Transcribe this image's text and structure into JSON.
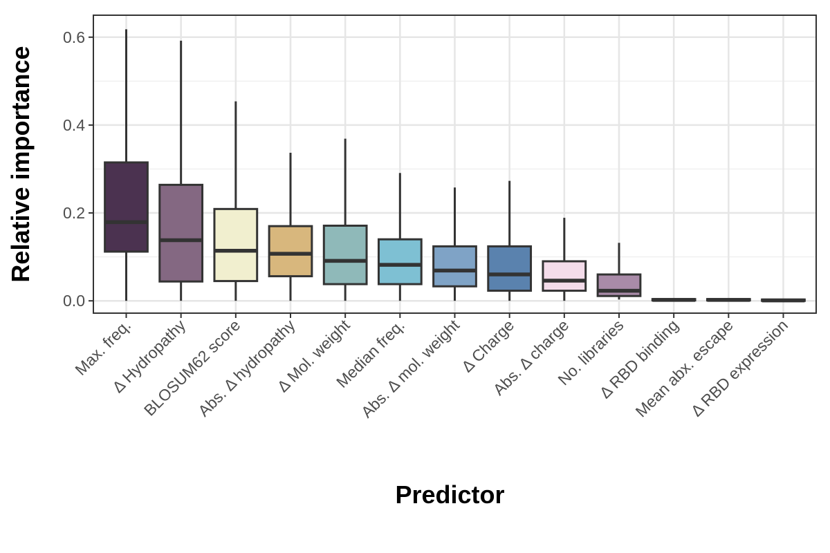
{
  "chart_data": {
    "type": "boxplot",
    "title": "",
    "xlabel": "Predictor",
    "ylabel": "Relative importance",
    "ylim": [
      -0.028,
      0.65
    ],
    "yticks": [
      0.0,
      0.2,
      0.4,
      0.6
    ],
    "ytick_labels": [
      "0.0",
      "0.2",
      "0.4",
      "0.6"
    ],
    "grid": true,
    "legend": "none",
    "categories": [
      "Max. freq.",
      "Δ Hydropathy",
      "BLOSUM62 score",
      "Abs. Δ hydropathy",
      "Δ Mol. weight",
      "Median freq.",
      "Abs. Δ mol. weight",
      "Δ Charge",
      "Abs. Δ charge",
      "No. libraries",
      "Δ RBD binding",
      "Mean abx. escape",
      "Δ RBD expression"
    ],
    "boxes": [
      {
        "min": 0.0,
        "q1": 0.112,
        "median": 0.179,
        "q3": 0.315,
        "max": 0.618,
        "color": "#4b3250"
      },
      {
        "min": 0.0,
        "q1": 0.044,
        "median": 0.138,
        "q3": 0.264,
        "max": 0.592,
        "color": "#846882"
      },
      {
        "min": 0.0,
        "q1": 0.045,
        "median": 0.114,
        "q3": 0.209,
        "max": 0.454,
        "color": "#f1efcf"
      },
      {
        "min": 0.0,
        "q1": 0.056,
        "median": 0.107,
        "q3": 0.17,
        "max": 0.337,
        "color": "#d8b77d"
      },
      {
        "min": 0.0,
        "q1": 0.038,
        "median": 0.091,
        "q3": 0.171,
        "max": 0.369,
        "color": "#8fb9b9"
      },
      {
        "min": 0.0,
        "q1": 0.038,
        "median": 0.082,
        "q3": 0.14,
        "max": 0.291,
        "color": "#7ec0d3"
      },
      {
        "min": 0.0,
        "q1": 0.033,
        "median": 0.069,
        "q3": 0.124,
        "max": 0.258,
        "color": "#7fa3c6"
      },
      {
        "min": 0.0,
        "q1": 0.023,
        "median": 0.06,
        "q3": 0.124,
        "max": 0.273,
        "color": "#5a82ae"
      },
      {
        "min": 0.0,
        "q1": 0.023,
        "median": 0.046,
        "q3": 0.09,
        "max": 0.189,
        "color": "#f4dcea"
      },
      {
        "min": 0.003,
        "q1": 0.011,
        "median": 0.023,
        "q3": 0.06,
        "max": 0.132,
        "color": "#a98ba8"
      },
      {
        "min": 0.0,
        "q1": 0.001,
        "median": 0.002,
        "q3": 0.004,
        "max": 0.006,
        "color": "#6b6b6b"
      },
      {
        "min": 0.0,
        "q1": 0.001,
        "median": 0.002,
        "q3": 0.004,
        "max": 0.005,
        "color": "#6b6b6b"
      },
      {
        "min": 0.0,
        "q1": 0.0,
        "median": 0.001,
        "q3": 0.003,
        "max": 0.004,
        "color": "#6b6b6b"
      }
    ]
  }
}
